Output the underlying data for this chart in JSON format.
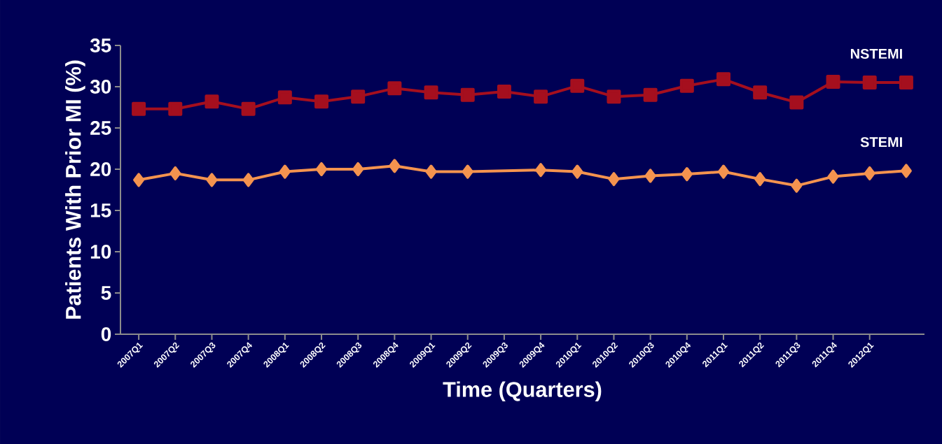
{
  "chart_data": {
    "type": "line",
    "xlabel": "Time (Quarters)",
    "ylabel": "Patients With Prior MI (%)",
    "categories": [
      "2007Q1",
      "2007Q2",
      "2007Q3",
      "2007Q4",
      "2008Q1",
      "2008Q2",
      "2008Q3",
      "2008Q4",
      "2009Q1",
      "2009Q2",
      "2009Q3",
      "2009Q4",
      "2010Q1",
      "2010Q2",
      "2010Q3",
      "2010Q4",
      "2011Q1",
      "2011Q2",
      "2011Q3",
      "2011Q4",
      "2012Q1",
      null
    ],
    "ylim": [
      0,
      35
    ],
    "yticks": [
      0,
      5,
      10,
      15,
      20,
      25,
      30,
      35
    ],
    "series": [
      {
        "name": "NSTEMI",
        "color": "#a50f1e",
        "marker": "square",
        "values": [
          27.3,
          27.3,
          28.2,
          27.3,
          28.7,
          28.2,
          28.8,
          29.8,
          29.3,
          29.0,
          29.4,
          28.8,
          30.1,
          28.8,
          29.0,
          30.1,
          30.9,
          29.3,
          28.1,
          30.6,
          30.5,
          30.5
        ]
      },
      {
        "name": "STEMI",
        "color": "#f4934f",
        "marker": "diamond",
        "values": [
          18.7,
          19.5,
          18.7,
          18.7,
          19.7,
          20.0,
          20.0,
          20.4,
          19.7,
          19.7,
          null,
          19.9,
          19.7,
          18.8,
          19.2,
          19.4,
          19.7,
          18.8,
          18.0,
          19.1,
          19.5,
          19.8
        ]
      }
    ]
  }
}
